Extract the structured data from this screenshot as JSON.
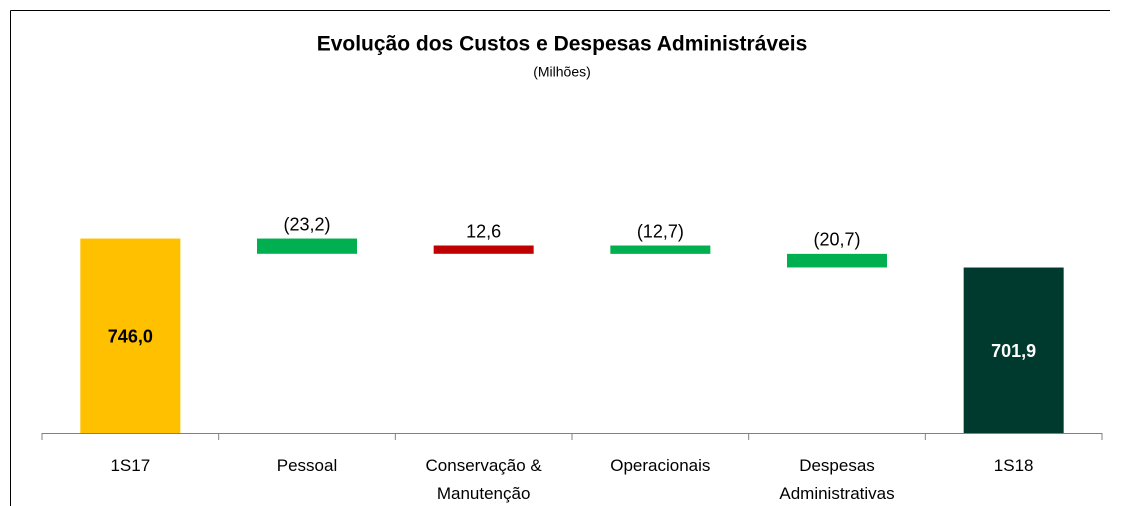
{
  "chart_data": {
    "type": "waterfall",
    "title": "Evolução dos Custos e Despesas Administráveis",
    "subtitle": "(Milhões)",
    "categories": [
      "1S17",
      "Pessoal",
      "Conservação & Manutenção",
      "Operacionais",
      "Despesas Administrativas",
      "1S18"
    ],
    "values": [
      746.0,
      -23.2,
      12.6,
      -12.7,
      -20.7,
      701.9
    ],
    "value_labels": [
      "746,0",
      "(23,2)",
      "12,6",
      "(12,7)",
      "(20,7)",
      "701,9"
    ],
    "colors": [
      "#ffc000",
      "#00b050",
      "#c00000",
      "#00b050",
      "#00b050",
      "#003a2e"
    ],
    "ylim": [
      450,
      1100
    ]
  }
}
